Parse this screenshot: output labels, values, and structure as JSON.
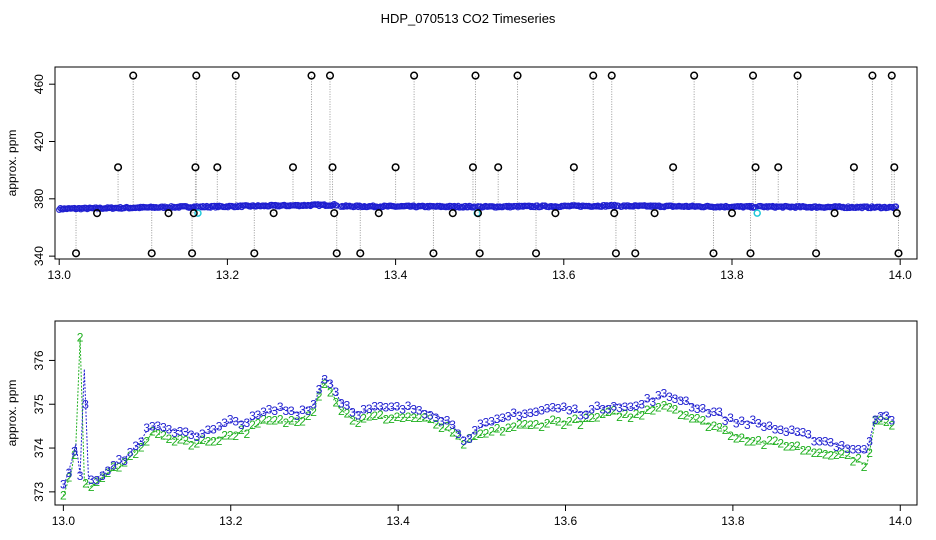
{
  "title": "HDP_070513  CO2 Timeseries",
  "colors": {
    "black": "#000000",
    "gray": "#9a9a9a",
    "blue": "#1f1fd0",
    "green": "#20b020",
    "cyan": "#20c8d8"
  },
  "chart_data": [
    {
      "type": "scatter",
      "panel": "top",
      "title": "HDP_070513  CO2 Timeseries",
      "xlabel": "",
      "ylabel": "approx. ppm",
      "xlim": [
        12.995,
        14.02
      ],
      "ylim": [
        338,
        472
      ],
      "xticks": [
        "13.0",
        "13.2",
        "13.4",
        "13.6",
        "13.8",
        "14.0"
      ],
      "yticks": [
        "340",
        "380",
        "420",
        "460"
      ],
      "grid": false,
      "legend": "none",
      "series": [
        {
          "values_kind": "black circle markers (reference levels)",
          "points": [
            [
              13.02,
              342
            ],
            [
              13.045,
              370
            ],
            [
              13.07,
              402
            ],
            [
              13.088,
              466
            ],
            [
              13.11,
              342
            ],
            [
              13.13,
              370
            ],
            [
              13.158,
              342
            ],
            [
              13.16,
              370
            ],
            [
              13.162,
              402
            ],
            [
              13.163,
              466
            ],
            [
              13.188,
              402
            ],
            [
              13.21,
              466
            ],
            [
              13.232,
              342
            ],
            [
              13.255,
              370
            ],
            [
              13.278,
              402
            ],
            [
              13.3,
              466
            ],
            [
              13.322,
              466
            ],
            [
              13.325,
              402
            ],
            [
              13.327,
              370
            ],
            [
              13.33,
              342
            ],
            [
              13.358,
              342
            ],
            [
              13.38,
              370
            ],
            [
              13.4,
              402
            ],
            [
              13.422,
              466
            ],
            [
              13.445,
              342
            ],
            [
              13.468,
              370
            ],
            [
              13.492,
              402
            ],
            [
              13.495,
              466
            ],
            [
              13.498,
              370
            ],
            [
              13.5,
              342
            ],
            [
              13.522,
              402
            ],
            [
              13.545,
              466
            ],
            [
              13.567,
              342
            ],
            [
              13.59,
              370
            ],
            [
              13.612,
              402
            ],
            [
              13.635,
              466
            ],
            [
              13.657,
              466
            ],
            [
              13.66,
              370
            ],
            [
              13.662,
              342
            ],
            [
              13.685,
              342
            ],
            [
              13.708,
              370
            ],
            [
              13.73,
              402
            ],
            [
              13.755,
              466
            ],
            [
              13.778,
              342
            ],
            [
              13.8,
              370
            ],
            [
              13.822,
              342
            ],
            [
              13.825,
              466
            ],
            [
              13.828,
              402
            ],
            [
              13.855,
              402
            ],
            [
              13.878,
              466
            ],
            [
              13.9,
              342
            ],
            [
              13.922,
              370
            ],
            [
              13.945,
              402
            ],
            [
              13.967,
              466
            ],
            [
              13.99,
              466
            ],
            [
              13.993,
              402
            ],
            [
              13.996,
              370
            ],
            [
              13.998,
              342
            ]
          ]
        },
        {
          "values_kind": "blue ambient CO2 readings",
          "segments": [
            {
              "x": [
                13.0,
                13.165
              ],
              "y": [
                373,
                374.5
              ]
            },
            {
              "x": [
                13.168,
                13.33
              ],
              "y": [
                374.4,
                375.8
              ]
            },
            {
              "x": [
                13.335,
                13.495
              ],
              "y": [
                374.8,
                374.5
              ]
            },
            {
              "x": [
                13.498,
                13.665
              ],
              "y": [
                374.4,
                375.2
              ]
            },
            {
              "x": [
                13.668,
                13.828
              ],
              "y": [
                375.0,
                374.4
              ]
            },
            {
              "x": [
                13.832,
                13.995
              ],
              "y": [
                374.5,
                374.0
              ]
            }
          ]
        },
        {
          "values_kind": "cyan segment boundary markers",
          "points": [
            [
              13.165,
              370
            ],
            [
              13.497,
              370
            ],
            [
              13.83,
              370
            ]
          ]
        }
      ]
    },
    {
      "type": "scatter",
      "panel": "bottom",
      "xlabel": "",
      "ylabel": "approx. ppm",
      "xlim": [
        12.99,
        14.02
      ],
      "ylim": [
        372.7,
        376.9
      ],
      "xticks": [
        "13.0",
        "13.2",
        "13.4",
        "13.6",
        "13.8",
        "14.0"
      ],
      "yticks": [
        "373",
        "374",
        "375",
        "376"
      ],
      "grid": false,
      "legend": "none",
      "marker_labels": [
        "2",
        "3"
      ],
      "x": [
        13.0,
        13.01,
        13.015,
        13.02,
        13.025,
        13.03,
        13.04,
        13.05,
        13.06,
        13.07,
        13.08,
        13.09,
        13.1,
        13.11,
        13.12,
        13.14,
        13.16,
        13.18,
        13.2,
        13.22,
        13.24,
        13.26,
        13.28,
        13.3,
        13.31,
        13.32,
        13.33,
        13.35,
        13.37,
        13.4,
        13.42,
        13.44,
        13.46,
        13.48,
        13.5,
        13.52,
        13.54,
        13.56,
        13.58,
        13.6,
        13.62,
        13.64,
        13.66,
        13.68,
        13.7,
        13.72,
        13.74,
        13.76,
        13.78,
        13.8,
        13.82,
        13.84,
        13.86,
        13.88,
        13.9,
        13.92,
        13.94,
        13.96,
        13.97,
        13.98,
        13.99
      ],
      "series": [
        {
          "marker": "3",
          "color": "blue",
          "values": [
            373.1,
            373.7,
            374.1,
            373.4,
            375.8,
            373.3,
            373.3,
            373.5,
            373.6,
            373.7,
            373.9,
            374.1,
            374.4,
            374.5,
            374.4,
            374.4,
            374.3,
            374.4,
            374.6,
            374.6,
            374.8,
            374.9,
            374.8,
            375.0,
            375.6,
            375.5,
            375.1,
            374.8,
            374.9,
            374.9,
            374.9,
            374.8,
            374.6,
            374.2,
            374.5,
            374.6,
            374.8,
            374.8,
            374.9,
            374.9,
            374.8,
            374.9,
            375.0,
            374.9,
            375.1,
            375.2,
            375.1,
            374.9,
            374.8,
            374.6,
            374.6,
            374.5,
            374.4,
            374.3,
            374.2,
            374.1,
            374.0,
            373.9,
            374.7,
            374.8,
            374.7
          ]
        },
        {
          "marker": "2",
          "color": "green",
          "values": [
            372.9,
            373.5,
            374.1,
            376.5,
            373.3,
            373.1,
            373.2,
            373.4,
            373.5,
            373.6,
            373.8,
            374.0,
            374.2,
            374.4,
            374.2,
            374.2,
            374.1,
            374.2,
            374.3,
            374.4,
            374.6,
            374.6,
            374.6,
            374.9,
            375.5,
            375.3,
            374.9,
            374.6,
            374.7,
            374.7,
            374.7,
            374.6,
            374.4,
            374.1,
            374.3,
            374.4,
            374.5,
            374.5,
            374.6,
            374.6,
            374.6,
            374.7,
            374.8,
            374.7,
            374.9,
            375.0,
            374.8,
            374.6,
            374.5,
            374.3,
            374.2,
            374.1,
            374.1,
            374.0,
            373.9,
            373.9,
            373.8,
            373.6,
            374.6,
            374.6,
            374.5
          ]
        }
      ]
    }
  ]
}
